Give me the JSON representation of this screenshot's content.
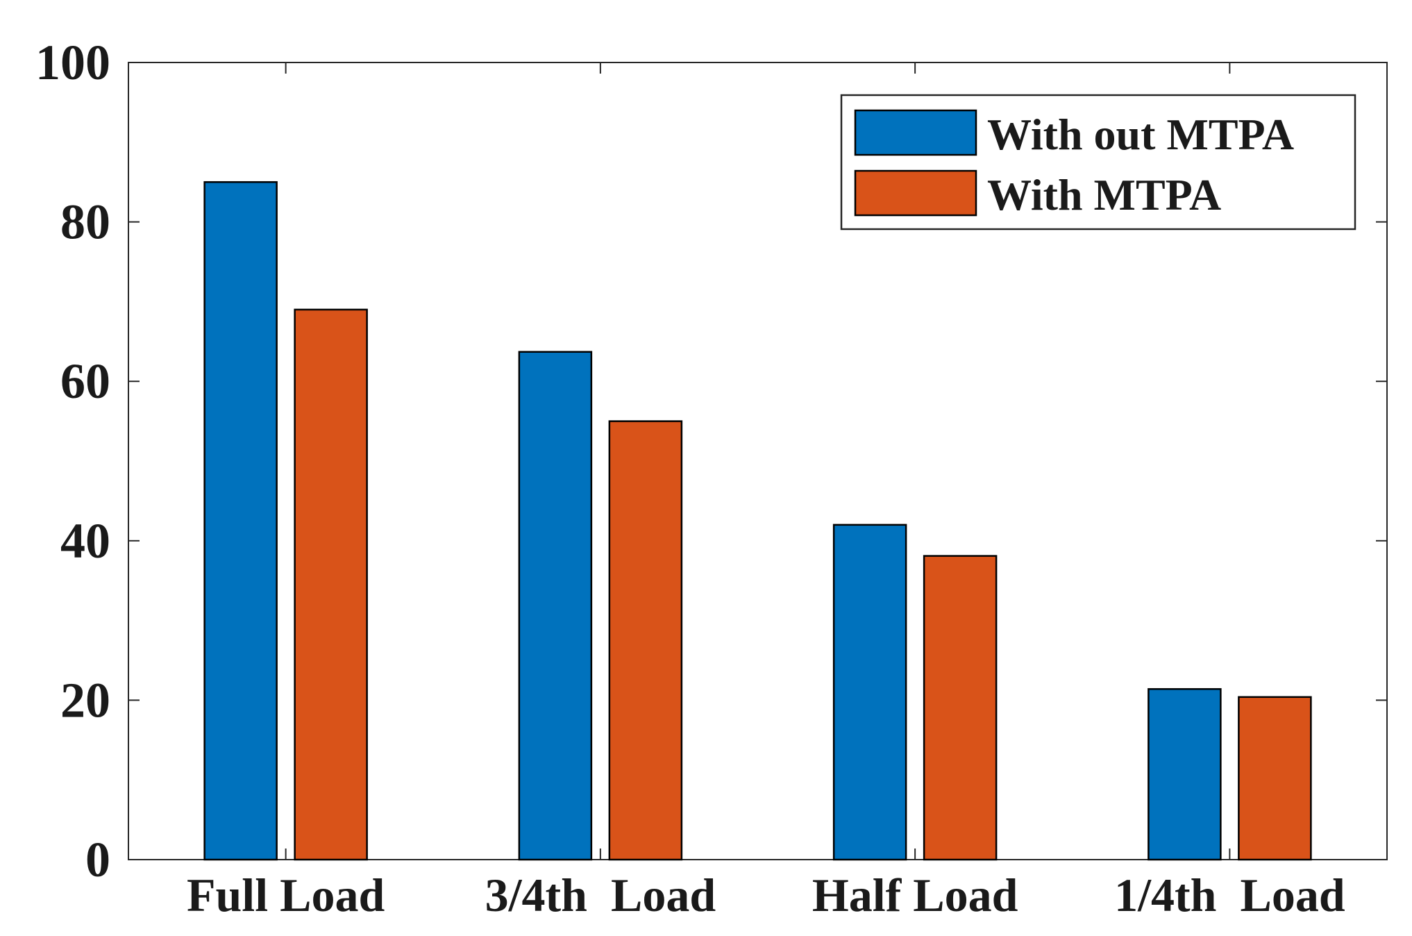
{
  "chart_data": {
    "type": "bar",
    "title": "",
    "xlabel": "",
    "ylabel": "",
    "categories": [
      "Full Load",
      "3/4th  Load",
      "Half Load",
      "1/4th  Load"
    ],
    "series": [
      {
        "name": "With out MTPA",
        "color": "#0072BD",
        "values": [
          85,
          63.7,
          42,
          21.4
        ]
      },
      {
        "name": "With MTPA",
        "color": "#D95319",
        "values": [
          69,
          55,
          38.1,
          20.4
        ]
      }
    ],
    "ylim": [
      0,
      100
    ],
    "yticks": [
      0,
      20,
      40,
      60,
      80,
      100
    ],
    "legend": "top-right",
    "grid": false
  }
}
